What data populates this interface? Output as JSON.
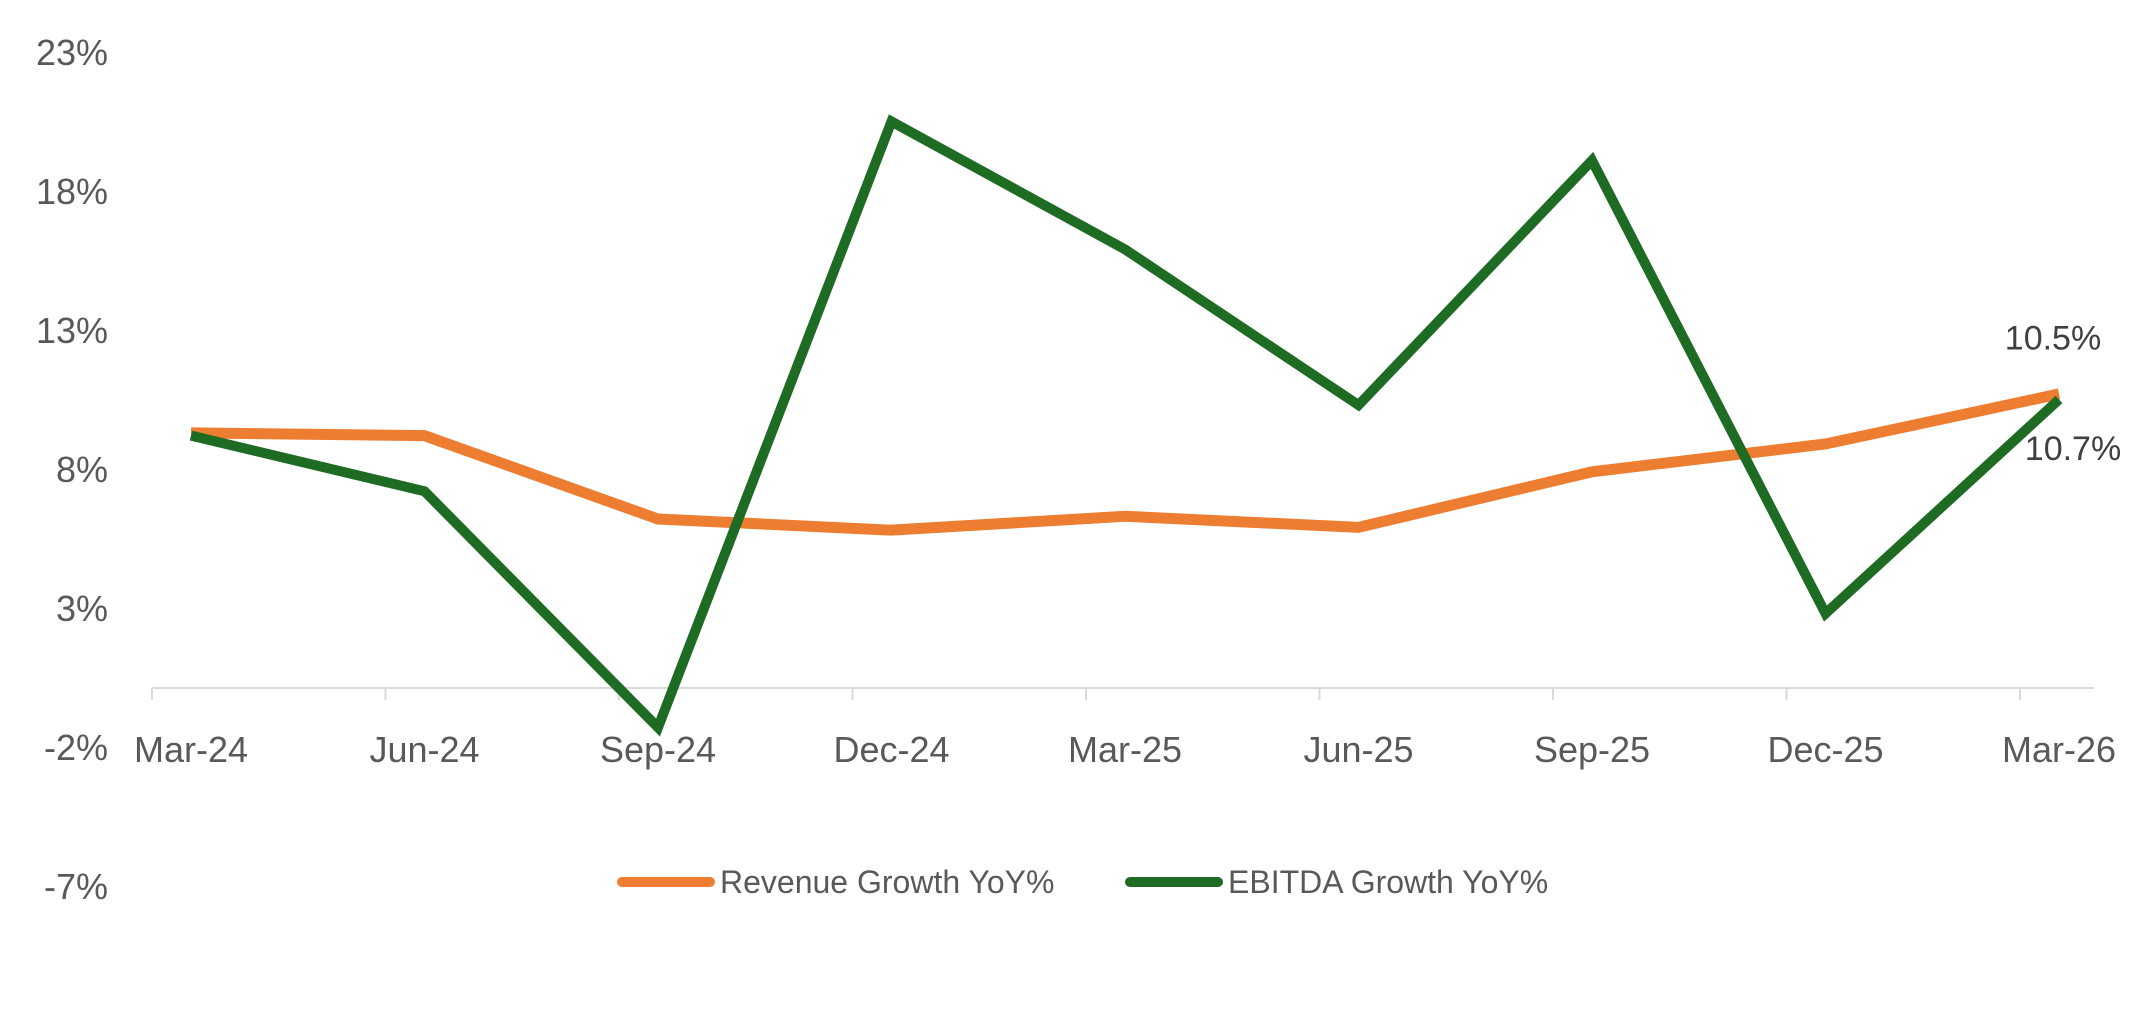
{
  "chart_data": {
    "type": "line",
    "title": "",
    "xlabel": "",
    "ylabel": "",
    "categories": [
      "Mar-24",
      "Jun-24",
      "Sep-24",
      "Dec-24",
      "Mar-25",
      "Jun-25",
      "Sep-25",
      "Dec-25",
      "Mar-26"
    ],
    "y_ticks": [
      "23%",
      "18%",
      "13%",
      "8%",
      "3%",
      "-2%",
      "-7%"
    ],
    "y_tick_values": [
      23,
      18,
      13,
      8,
      3,
      -2,
      -7
    ],
    "ylim": [
      -7,
      23
    ],
    "grid": false,
    "legend_position": "bottom",
    "series": [
      {
        "name": "Revenue Growth YoY%",
        "color": "#ED7D31",
        "values": [
          9.3,
          9.2,
          6.2,
          5.8,
          6.3,
          5.9,
          7.9,
          8.9,
          10.7
        ]
      },
      {
        "name": "EBITDA Growth YoY%",
        "color": "#1E6B24",
        "values": [
          9.2,
          7.2,
          -1.3,
          20.5,
          15.9,
          10.3,
          19.1,
          2.8,
          10.5
        ]
      }
    ],
    "annotations": [
      {
        "text": "10.5%",
        "series": 1,
        "index": 8,
        "placement": "above"
      },
      {
        "text": "10.7%",
        "series": 0,
        "index": 8,
        "placement": "below"
      }
    ]
  }
}
